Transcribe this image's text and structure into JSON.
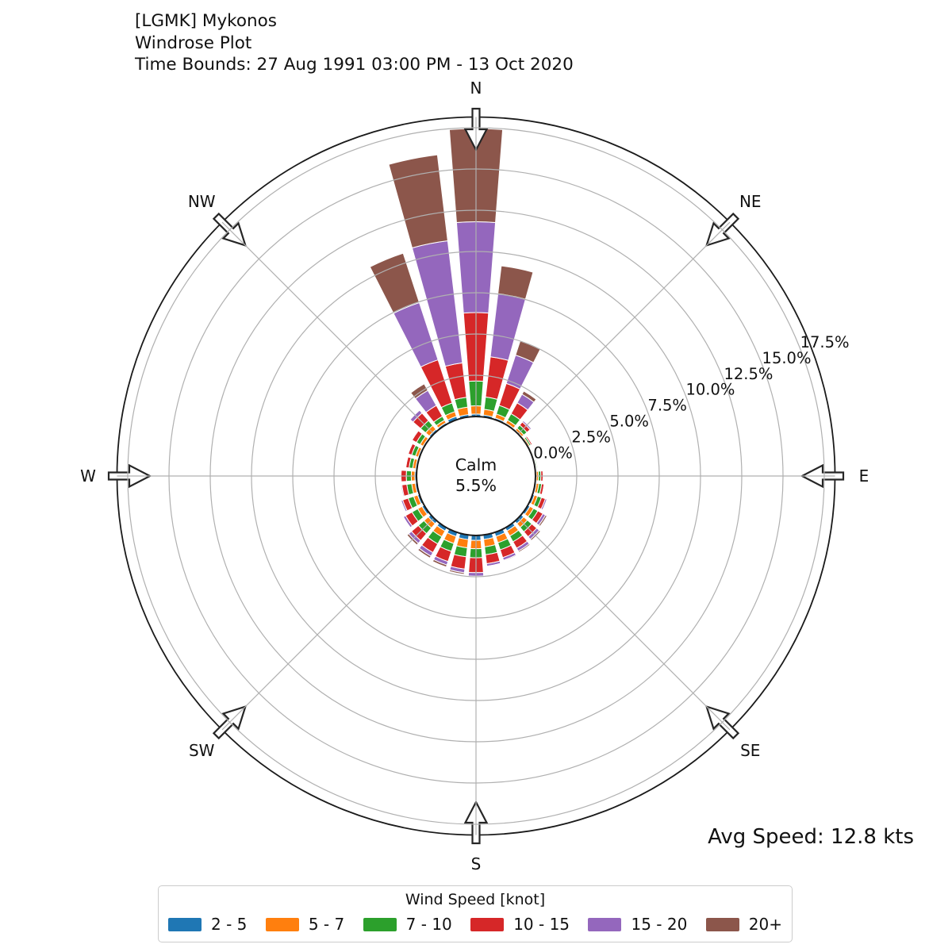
{
  "header": {
    "line1": "[LGMK] Mykonos",
    "line2": "Windrose Plot",
    "line3": "Time Bounds: 27 Aug 1991 03:00 PM - 13 Oct 2020"
  },
  "avg_speed": "Avg Speed: 12.8 kts",
  "legend": {
    "title": "Wind Speed [knot]",
    "entries": [
      {
        "label": "2 - 5",
        "color": "#1f77b4"
      },
      {
        "label": "5 - 7",
        "color": "#ff7f0e"
      },
      {
        "label": "7 - 10",
        "color": "#2ca02c"
      },
      {
        "label": "10 - 15",
        "color": "#d62728"
      },
      {
        "label": "15 - 20",
        "color": "#9467bd"
      },
      {
        "label": "20+",
        "color": "#8c564b"
      }
    ]
  },
  "chart_data": {
    "type": "bar",
    "subtype": "windrose-polar-stacked",
    "units": "percent of observations",
    "calm": {
      "label": "Calm",
      "value_label": "5.5%",
      "percent": 5.5
    },
    "compass_labels": [
      {
        "label": "N",
        "angle": 0
      },
      {
        "label": "NE",
        "angle": 45
      },
      {
        "label": "E",
        "angle": 90
      },
      {
        "label": "SE",
        "angle": 135
      },
      {
        "label": "S",
        "angle": 180
      },
      {
        "label": "SW",
        "angle": 225
      },
      {
        "label": "W",
        "angle": 270
      },
      {
        "label": "NW",
        "angle": 315
      }
    ],
    "radial_ticks": [
      {
        "label": "0.0%",
        "value": 0.0
      },
      {
        "label": "2.5%",
        "value": 2.5
      },
      {
        "label": "5.0%",
        "value": 5.0
      },
      {
        "label": "7.5%",
        "value": 7.5
      },
      {
        "label": "10.0%",
        "value": 10.0
      },
      {
        "label": "12.5%",
        "value": 12.5
      },
      {
        "label": "15.0%",
        "value": 15.0
      },
      {
        "label": "17.5%",
        "value": 17.5
      }
    ],
    "radial_tick_angle_deg": 67.5,
    "rmax_percent": 18.15,
    "grid": true,
    "grid_color": "#b0b0b0",
    "outline_color": "#1a1a1a",
    "direction_step_deg": 11.25,
    "directions_deg": [
      0,
      11.25,
      22.5,
      33.75,
      45,
      56.25,
      67.5,
      78.75,
      90,
      101.25,
      112.5,
      123.75,
      135,
      146.25,
      157.5,
      168.75,
      180,
      191.25,
      202.5,
      213.75,
      225,
      236.25,
      247.5,
      258.75,
      270,
      281.25,
      292.5,
      303.75,
      315,
      326.25,
      337.5,
      348.75
    ],
    "series": [
      {
        "name": "2 - 5",
        "color": "#1f77b4",
        "values": [
          0.15,
          0.12,
          0.1,
          0.08,
          0.06,
          0.04,
          0.03,
          0.03,
          0.06,
          0.08,
          0.12,
          0.15,
          0.2,
          0.22,
          0.25,
          0.27,
          0.3,
          0.28,
          0.25,
          0.22,
          0.2,
          0.15,
          0.12,
          0.1,
          0.1,
          0.08,
          0.08,
          0.08,
          0.12,
          0.1,
          0.2,
          0.15
        ]
      },
      {
        "name": "5 - 7",
        "color": "#ff7f0e",
        "values": [
          0.5,
          0.35,
          0.25,
          0.2,
          0.15,
          0.08,
          0.05,
          0.05,
          0.12,
          0.15,
          0.2,
          0.25,
          0.3,
          0.35,
          0.4,
          0.45,
          0.5,
          0.5,
          0.45,
          0.4,
          0.35,
          0.3,
          0.25,
          0.22,
          0.22,
          0.18,
          0.18,
          0.2,
          0.3,
          0.18,
          0.3,
          0.45
        ]
      },
      {
        "name": "7 - 10",
        "color": "#2ca02c",
        "values": [
          1.5,
          0.75,
          0.55,
          0.45,
          0.25,
          0.1,
          0.05,
          0.06,
          0.15,
          0.17,
          0.25,
          0.3,
          0.35,
          0.4,
          0.45,
          0.48,
          0.55,
          0.55,
          0.5,
          0.5,
          0.45,
          0.4,
          0.35,
          0.3,
          0.3,
          0.22,
          0.24,
          0.26,
          0.4,
          0.27,
          0.55,
          0.6
        ]
      },
      {
        "name": "10 - 15",
        "color": "#d62728",
        "values": [
          4.15,
          2.45,
          1.4,
          0.75,
          0.25,
          0.09,
          0.04,
          0.05,
          0.13,
          0.15,
          0.25,
          0.35,
          0.4,
          0.45,
          0.5,
          0.55,
          0.9,
          0.75,
          0.65,
          0.6,
          0.55,
          0.45,
          0.35,
          0.3,
          0.32,
          0.2,
          0.22,
          0.3,
          0.6,
          0.75,
          2.75,
          2.1
        ]
      },
      {
        "name": "15 - 20",
        "color": "#9467bd",
        "values": [
          5.5,
          3.85,
          1.8,
          0.6,
          0.1,
          0.03,
          0.01,
          0.01,
          0.03,
          0.04,
          0.1,
          0.18,
          0.2,
          0.2,
          0.17,
          0.15,
          0.22,
          0.22,
          0.22,
          0.25,
          0.22,
          0.15,
          0.1,
          0.06,
          0.05,
          0.02,
          0.03,
          0.05,
          0.23,
          1.05,
          3.65,
          7.45
        ]
      },
      {
        "name": "20+",
        "color": "#8c564b",
        "values": [
          5.65,
          1.7,
          0.9,
          0.22,
          0.04,
          0.01,
          0.0,
          0.0,
          0.01,
          0.01,
          0.03,
          0.1,
          0.1,
          0.08,
          0.05,
          0.05,
          0.03,
          0.1,
          0.13,
          0.13,
          0.13,
          0.05,
          0.03,
          0.02,
          0.01,
          0.0,
          0.0,
          0.01,
          0.05,
          0.45,
          3.15,
          5.25
        ]
      }
    ]
  }
}
